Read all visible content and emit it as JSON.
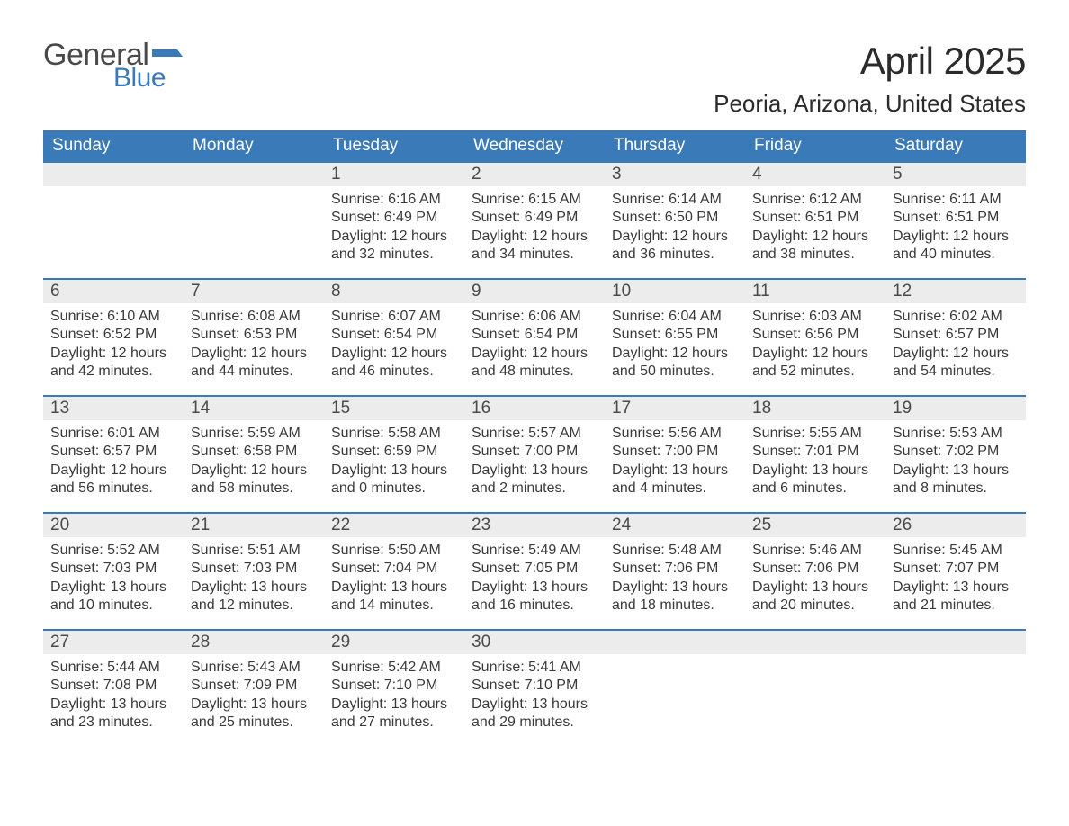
{
  "logo": {
    "text1": "General",
    "text2": "Blue",
    "flag_color": "#3a7ab8"
  },
  "title": "April 2025",
  "location": "Peoria, Arizona, United States",
  "colors": {
    "header_bg": "#3a7ab8",
    "header_text": "#ffffff",
    "daystrip_bg": "#ececec",
    "text": "#333333",
    "week_divider": "#3a7ab8",
    "background": "#ffffff"
  },
  "typography": {
    "title_fontsize": 42,
    "location_fontsize": 26,
    "header_fontsize": 19,
    "daynum_fontsize": 19,
    "body_fontsize": 16
  },
  "headers": [
    "Sunday",
    "Monday",
    "Tuesday",
    "Wednesday",
    "Thursday",
    "Friday",
    "Saturday"
  ],
  "weeks": [
    [
      {
        "n": "",
        "sunrise": "",
        "sunset": "",
        "daylight": ""
      },
      {
        "n": "",
        "sunrise": "",
        "sunset": "",
        "daylight": ""
      },
      {
        "n": "1",
        "sunrise": "Sunrise: 6:16 AM",
        "sunset": "Sunset: 6:49 PM",
        "daylight": "Daylight: 12 hours and 32 minutes."
      },
      {
        "n": "2",
        "sunrise": "Sunrise: 6:15 AM",
        "sunset": "Sunset: 6:49 PM",
        "daylight": "Daylight: 12 hours and 34 minutes."
      },
      {
        "n": "3",
        "sunrise": "Sunrise: 6:14 AM",
        "sunset": "Sunset: 6:50 PM",
        "daylight": "Daylight: 12 hours and 36 minutes."
      },
      {
        "n": "4",
        "sunrise": "Sunrise: 6:12 AM",
        "sunset": "Sunset: 6:51 PM",
        "daylight": "Daylight: 12 hours and 38 minutes."
      },
      {
        "n": "5",
        "sunrise": "Sunrise: 6:11 AM",
        "sunset": "Sunset: 6:51 PM",
        "daylight": "Daylight: 12 hours and 40 minutes."
      }
    ],
    [
      {
        "n": "6",
        "sunrise": "Sunrise: 6:10 AM",
        "sunset": "Sunset: 6:52 PM",
        "daylight": "Daylight: 12 hours and 42 minutes."
      },
      {
        "n": "7",
        "sunrise": "Sunrise: 6:08 AM",
        "sunset": "Sunset: 6:53 PM",
        "daylight": "Daylight: 12 hours and 44 minutes."
      },
      {
        "n": "8",
        "sunrise": "Sunrise: 6:07 AM",
        "sunset": "Sunset: 6:54 PM",
        "daylight": "Daylight: 12 hours and 46 minutes."
      },
      {
        "n": "9",
        "sunrise": "Sunrise: 6:06 AM",
        "sunset": "Sunset: 6:54 PM",
        "daylight": "Daylight: 12 hours and 48 minutes."
      },
      {
        "n": "10",
        "sunrise": "Sunrise: 6:04 AM",
        "sunset": "Sunset: 6:55 PM",
        "daylight": "Daylight: 12 hours and 50 minutes."
      },
      {
        "n": "11",
        "sunrise": "Sunrise: 6:03 AM",
        "sunset": "Sunset: 6:56 PM",
        "daylight": "Daylight: 12 hours and 52 minutes."
      },
      {
        "n": "12",
        "sunrise": "Sunrise: 6:02 AM",
        "sunset": "Sunset: 6:57 PM",
        "daylight": "Daylight: 12 hours and 54 minutes."
      }
    ],
    [
      {
        "n": "13",
        "sunrise": "Sunrise: 6:01 AM",
        "sunset": "Sunset: 6:57 PM",
        "daylight": "Daylight: 12 hours and 56 minutes."
      },
      {
        "n": "14",
        "sunrise": "Sunrise: 5:59 AM",
        "sunset": "Sunset: 6:58 PM",
        "daylight": "Daylight: 12 hours and 58 minutes."
      },
      {
        "n": "15",
        "sunrise": "Sunrise: 5:58 AM",
        "sunset": "Sunset: 6:59 PM",
        "daylight": "Daylight: 13 hours and 0 minutes."
      },
      {
        "n": "16",
        "sunrise": "Sunrise: 5:57 AM",
        "sunset": "Sunset: 7:00 PM",
        "daylight": "Daylight: 13 hours and 2 minutes."
      },
      {
        "n": "17",
        "sunrise": "Sunrise: 5:56 AM",
        "sunset": "Sunset: 7:00 PM",
        "daylight": "Daylight: 13 hours and 4 minutes."
      },
      {
        "n": "18",
        "sunrise": "Sunrise: 5:55 AM",
        "sunset": "Sunset: 7:01 PM",
        "daylight": "Daylight: 13 hours and 6 minutes."
      },
      {
        "n": "19",
        "sunrise": "Sunrise: 5:53 AM",
        "sunset": "Sunset: 7:02 PM",
        "daylight": "Daylight: 13 hours and 8 minutes."
      }
    ],
    [
      {
        "n": "20",
        "sunrise": "Sunrise: 5:52 AM",
        "sunset": "Sunset: 7:03 PM",
        "daylight": "Daylight: 13 hours and 10 minutes."
      },
      {
        "n": "21",
        "sunrise": "Sunrise: 5:51 AM",
        "sunset": "Sunset: 7:03 PM",
        "daylight": "Daylight: 13 hours and 12 minutes."
      },
      {
        "n": "22",
        "sunrise": "Sunrise: 5:50 AM",
        "sunset": "Sunset: 7:04 PM",
        "daylight": "Daylight: 13 hours and 14 minutes."
      },
      {
        "n": "23",
        "sunrise": "Sunrise: 5:49 AM",
        "sunset": "Sunset: 7:05 PM",
        "daylight": "Daylight: 13 hours and 16 minutes."
      },
      {
        "n": "24",
        "sunrise": "Sunrise: 5:48 AM",
        "sunset": "Sunset: 7:06 PM",
        "daylight": "Daylight: 13 hours and 18 minutes."
      },
      {
        "n": "25",
        "sunrise": "Sunrise: 5:46 AM",
        "sunset": "Sunset: 7:06 PM",
        "daylight": "Daylight: 13 hours and 20 minutes."
      },
      {
        "n": "26",
        "sunrise": "Sunrise: 5:45 AM",
        "sunset": "Sunset: 7:07 PM",
        "daylight": "Daylight: 13 hours and 21 minutes."
      }
    ],
    [
      {
        "n": "27",
        "sunrise": "Sunrise: 5:44 AM",
        "sunset": "Sunset: 7:08 PM",
        "daylight": "Daylight: 13 hours and 23 minutes."
      },
      {
        "n": "28",
        "sunrise": "Sunrise: 5:43 AM",
        "sunset": "Sunset: 7:09 PM",
        "daylight": "Daylight: 13 hours and 25 minutes."
      },
      {
        "n": "29",
        "sunrise": "Sunrise: 5:42 AM",
        "sunset": "Sunset: 7:10 PM",
        "daylight": "Daylight: 13 hours and 27 minutes."
      },
      {
        "n": "30",
        "sunrise": "Sunrise: 5:41 AM",
        "sunset": "Sunset: 7:10 PM",
        "daylight": "Daylight: 13 hours and 29 minutes."
      },
      {
        "n": "",
        "sunrise": "",
        "sunset": "",
        "daylight": ""
      },
      {
        "n": "",
        "sunrise": "",
        "sunset": "",
        "daylight": ""
      },
      {
        "n": "",
        "sunrise": "",
        "sunset": "",
        "daylight": ""
      }
    ]
  ]
}
